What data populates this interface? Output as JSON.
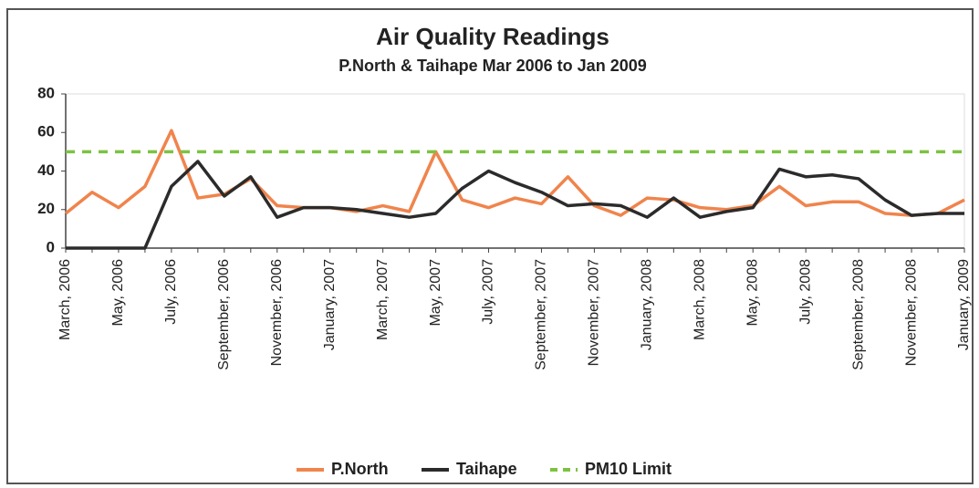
{
  "chart_data": {
    "type": "line",
    "title": "Air Quality Readings",
    "subtitle": "P.North & Taihape Mar 2006 to Jan 2009",
    "categories": [
      "March, 2006",
      null,
      "May, 2006",
      null,
      "July, 2006",
      null,
      "September, 2006",
      null,
      "November, 2006",
      null,
      "January, 2007",
      null,
      "March, 2007",
      null,
      "May, 2007",
      null,
      "July, 2007",
      null,
      "September, 2007",
      null,
      "November, 2007",
      null,
      "January, 2008",
      null,
      "March, 2008",
      null,
      "May, 2008",
      null,
      "July, 2008",
      null,
      "September, 2008",
      null,
      "November, 2008",
      null,
      "January, 2009"
    ],
    "series": [
      {
        "name": "P.North",
        "color": "#f0844c",
        "dashed": false,
        "values": [
          18,
          29,
          21,
          32,
          61,
          26,
          28,
          36,
          22,
          21,
          21,
          19,
          22,
          19,
          50,
          25,
          21,
          26,
          23,
          37,
          22,
          17,
          26,
          25,
          21,
          20,
          22,
          32,
          22,
          24,
          24,
          18,
          17,
          18,
          25
        ]
      },
      {
        "name": "Taihape",
        "color": "#2b2b2b",
        "dashed": false,
        "values": [
          0,
          0,
          0,
          0,
          32,
          45,
          27,
          37,
          16,
          21,
          21,
          20,
          18,
          16,
          18,
          31,
          40,
          34,
          29,
          22,
          23,
          22,
          16,
          26,
          16,
          19,
          21,
          41,
          37,
          38,
          36,
          25,
          17,
          18,
          18
        ]
      },
      {
        "name": "PM10 Limit",
        "color": "#7dc242",
        "dashed": true,
        "values": [
          50,
          50,
          50,
          50,
          50,
          50,
          50,
          50,
          50,
          50,
          50,
          50,
          50,
          50,
          50,
          50,
          50,
          50,
          50,
          50,
          50,
          50,
          50,
          50,
          50,
          50,
          50,
          50,
          50,
          50,
          50,
          50,
          50,
          50,
          50
        ]
      }
    ],
    "ylim": [
      0,
      80
    ],
    "yticks": [
      0,
      20,
      40,
      60,
      80
    ],
    "grid": false,
    "legend": "bottom"
  }
}
